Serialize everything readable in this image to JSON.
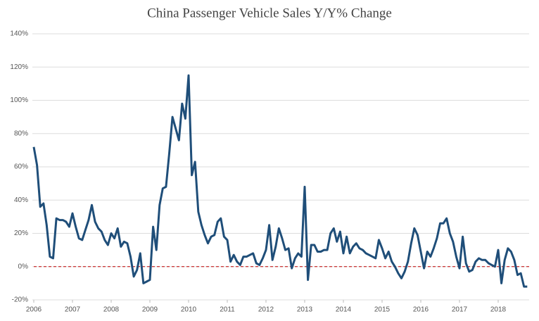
{
  "chart_data": {
    "type": "line",
    "title": "China Passenger Vehicle Sales Y/Y% Change",
    "x": [
      2006,
      2006.083,
      2006.167,
      2006.25,
      2006.333,
      2006.417,
      2006.5,
      2006.583,
      2006.667,
      2006.75,
      2006.833,
      2006.917,
      2007,
      2007.083,
      2007.167,
      2007.25,
      2007.333,
      2007.417,
      2007.5,
      2007.583,
      2007.667,
      2007.75,
      2007.833,
      2007.917,
      2008,
      2008.083,
      2008.167,
      2008.25,
      2008.333,
      2008.417,
      2008.5,
      2008.583,
      2008.667,
      2008.75,
      2008.833,
      2008.917,
      2009,
      2009.083,
      2009.167,
      2009.25,
      2009.333,
      2009.417,
      2009.5,
      2009.583,
      2009.667,
      2009.75,
      2009.833,
      2009.917,
      2010,
      2010.083,
      2010.167,
      2010.25,
      2010.333,
      2010.417,
      2010.5,
      2010.583,
      2010.667,
      2010.75,
      2010.833,
      2010.917,
      2011,
      2011.083,
      2011.167,
      2011.25,
      2011.333,
      2011.417,
      2011.5,
      2011.583,
      2011.667,
      2011.75,
      2011.833,
      2011.917,
      2012,
      2012.083,
      2012.167,
      2012.25,
      2012.333,
      2012.417,
      2012.5,
      2012.583,
      2012.667,
      2012.75,
      2012.833,
      2012.917,
      2013,
      2013.083,
      2013.167,
      2013.25,
      2013.333,
      2013.417,
      2013.5,
      2013.583,
      2013.667,
      2013.75,
      2013.833,
      2013.917,
      2014,
      2014.083,
      2014.167,
      2014.25,
      2014.333,
      2014.417,
      2014.5,
      2014.583,
      2014.667,
      2014.75,
      2014.833,
      2014.917,
      2015,
      2015.083,
      2015.167,
      2015.25,
      2015.333,
      2015.417,
      2015.5,
      2015.583,
      2015.667,
      2015.75,
      2015.833,
      2015.917,
      2016,
      2016.083,
      2016.167,
      2016.25,
      2016.333,
      2016.417,
      2016.5,
      2016.583,
      2016.667,
      2016.75,
      2016.833,
      2016.917,
      2017,
      2017.083,
      2017.167,
      2017.25,
      2017.333,
      2017.417,
      2017.5,
      2017.583,
      2017.667,
      2017.75,
      2017.833,
      2017.917,
      2018,
      2018.083,
      2018.167,
      2018.25,
      2018.333,
      2018.417,
      2018.5,
      2018.583,
      2018.667,
      2018.75
    ],
    "series": [
      {
        "name": "Passenger vehicle sales Y/Y% change",
        "color": "#1f4e79",
        "values": [
          72,
          61,
          36,
          38,
          25,
          6,
          5,
          29,
          28,
          28,
          27,
          24,
          32,
          24,
          17,
          16,
          22,
          28,
          37,
          27,
          23,
          21,
          16,
          13,
          20,
          17,
          23,
          12,
          15,
          14,
          6,
          -6,
          -2,
          8,
          -10,
          -9,
          -8,
          24,
          10,
          37,
          47,
          48,
          68,
          90,
          83,
          76,
          98,
          89,
          115,
          55,
          63,
          33,
          25,
          19,
          14,
          18,
          19,
          27,
          29,
          18,
          16,
          3,
          7,
          3,
          1,
          6,
          6,
          7,
          8,
          2,
          1,
          5,
          10,
          25,
          4,
          12,
          23,
          17,
          10,
          11,
          -1,
          5,
          8,
          6,
          48,
          -8,
          13,
          13,
          9,
          9,
          10,
          10,
          20,
          23,
          15,
          21,
          8,
          18,
          8,
          12,
          14,
          11,
          10,
          8,
          7,
          6,
          5,
          16,
          11,
          5,
          9,
          3,
          0,
          -4,
          -7,
          -3,
          3,
          14,
          23,
          19,
          9,
          -1,
          9,
          6,
          11,
          17,
          26,
          26,
          29,
          20,
          15,
          6,
          -1,
          18,
          2,
          -3,
          -2,
          3,
          5,
          4,
          4,
          2,
          1,
          0,
          10,
          -10,
          4,
          11,
          9,
          4,
          -5,
          -4,
          -12,
          -12
        ]
      }
    ],
    "xlim": [
      2006,
      2018.8
    ],
    "xticks": [
      2006,
      2007,
      2008,
      2009,
      2010,
      2011,
      2012,
      2013,
      2014,
      2015,
      2016,
      2017,
      2018
    ],
    "ylim": [
      -20,
      140
    ],
    "yticks": [
      {
        "value": -20,
        "label": "-20%"
      },
      {
        "value": 0,
        "label": "0%"
      },
      {
        "value": 20,
        "label": "20%"
      },
      {
        "value": 40,
        "label": "40%"
      },
      {
        "value": 60,
        "label": "60%"
      },
      {
        "value": 80,
        "label": "80%"
      },
      {
        "value": 100,
        "label": "100%"
      },
      {
        "value": 120,
        "label": "120%"
      },
      {
        "value": 140,
        "label": "140%"
      }
    ],
    "grid": true,
    "zero_line_color": "#c00000"
  }
}
